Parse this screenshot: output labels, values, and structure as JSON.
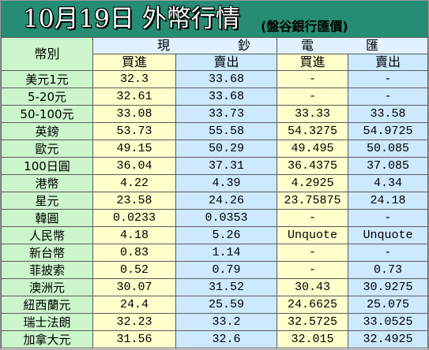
{
  "colors": {
    "title_bar": "#268c73",
    "title_text": "#ffffff",
    "currency_column": "#ccf5cc",
    "buy_column": "#ffffcc",
    "sell_column": "#cce9ff",
    "group_header": "#e2f1ff",
    "grid": "#5a5a5a"
  },
  "chart_data": {
    "type": "table",
    "title": "10月19日 外幣行情",
    "subtitle": "(盤谷銀行匯價)",
    "header": {
      "currency": "幣別",
      "groups": [
        "現鈔",
        "電匯"
      ],
      "subcolumns": [
        "買進",
        "賣出",
        "買進",
        "賣出"
      ]
    },
    "rows": [
      {
        "currency": "美元1元",
        "values": [
          32.3,
          33.68,
          "-",
          "-"
        ]
      },
      {
        "currency": "5-20元",
        "values": [
          32.61,
          33.68,
          "-",
          "-"
        ]
      },
      {
        "currency": "50-100元",
        "values": [
          33.08,
          33.73,
          33.33,
          33.58
        ]
      },
      {
        "currency": "英鎊",
        "values": [
          53.73,
          55.58,
          54.3275,
          54.9725
        ]
      },
      {
        "currency": "歐元",
        "values": [
          49.15,
          50.29,
          49.495,
          50.085
        ]
      },
      {
        "currency": "100日圓",
        "values": [
          36.04,
          37.31,
          36.4375,
          37.085
        ]
      },
      {
        "currency": "港幣",
        "values": [
          4.22,
          4.39,
          4.2925,
          4.34
        ]
      },
      {
        "currency": "星元",
        "values": [
          23.58,
          24.26,
          23.75875,
          24.18
        ]
      },
      {
        "currency": "韓圓",
        "values": [
          0.0233,
          0.0353,
          "-",
          "-"
        ]
      },
      {
        "currency": "人民幣",
        "values": [
          4.18,
          5.26,
          "Unquote",
          "Unquote"
        ]
      },
      {
        "currency": "新台幣",
        "values": [
          0.83,
          1.14,
          "-",
          "-"
        ]
      },
      {
        "currency": "菲披索",
        "values": [
          0.52,
          0.79,
          "-",
          0.73
        ]
      },
      {
        "currency": "澳洲元",
        "values": [
          30.07,
          31.52,
          30.43,
          30.9275
        ]
      },
      {
        "currency": "紐西蘭元",
        "values": [
          24.4,
          25.59,
          24.6625,
          25.075
        ]
      },
      {
        "currency": "瑞士法朗",
        "values": [
          32.23,
          33.2,
          32.5725,
          33.0525
        ]
      },
      {
        "currency": "加拿大元",
        "values": [
          31.56,
          32.6,
          32.015,
          32.4925
        ]
      }
    ]
  }
}
